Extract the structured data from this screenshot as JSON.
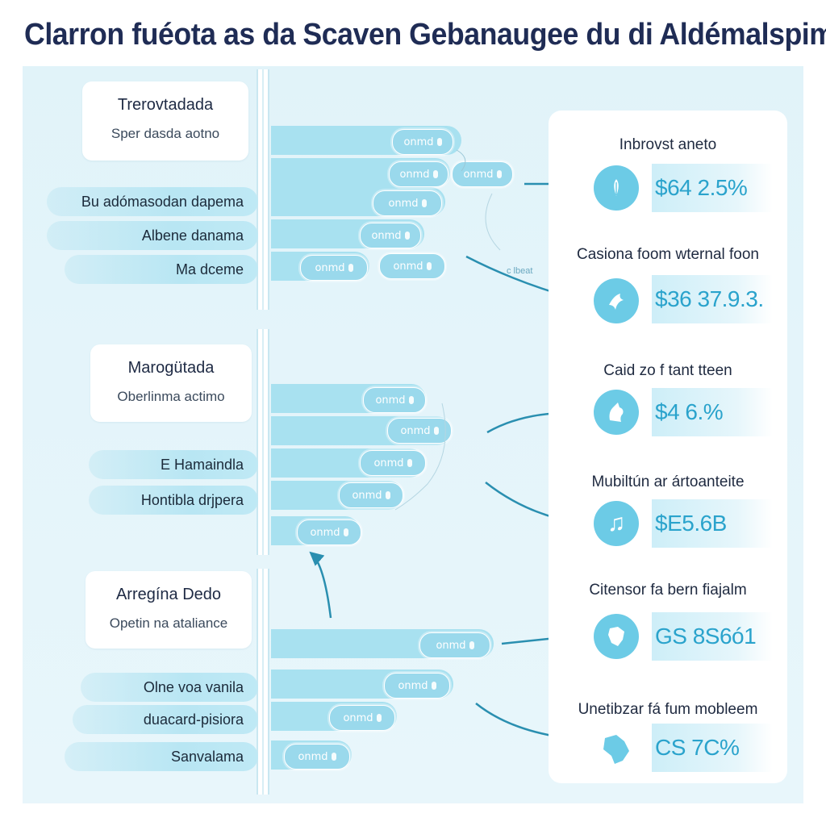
{
  "title": "Clarron fuéota as da Scaven Gebanaugee du di Aldémalspim",
  "groups": [
    {
      "card_title": "Trerovtadada",
      "card_sub": "Sper dasda aotno",
      "rows": [
        "Bu adómasodan dapema",
        "Albene danama",
        "Ma dceme"
      ],
      "pills": [
        "onmd",
        "onmd",
        "onmd",
        "onmd",
        "onmd",
        "onmd",
        "onmd"
      ]
    },
    {
      "card_title": "Marogütada",
      "card_sub": "Oberlinma actimo",
      "rows": [
        "E Hamaindla",
        "Hontibla drjpera"
      ],
      "pills": [
        "onmd",
        "onmd",
        "onmd",
        "onmd",
        "onmd"
      ]
    },
    {
      "card_title": "Arregína Dedo",
      "card_sub": "Opetin na ataliance",
      "rows": [
        "Olne voa vanila",
        "duacard-pisiora",
        "Sanvalama"
      ],
      "pills": [
        "onmd",
        "onmd",
        "onmd",
        "onmd"
      ]
    }
  ],
  "small_note_1": "c  lbeat",
  "metrics": [
    {
      "title": "Inbrovst aneto",
      "value": "$64 2.5%",
      "icon": "leaf-icon"
    },
    {
      "title": "Casiona foom wternal foon",
      "value": "$36 37.9.3.",
      "icon": "bird-icon"
    },
    {
      "title": "Caid zo f tant tteen",
      "value": "$4 6.%",
      "icon": "dog-icon"
    },
    {
      "title": "Mubiltún ar ártoanteite",
      "value": "$E5.6B",
      "icon": "music-icon"
    },
    {
      "title": "Citensor fa bern fiajalm",
      "value": "GS 8S6ó1",
      "icon": "map-region-icon"
    },
    {
      "title": "Unetibzar fá fum mobleem",
      "value": "CS 7C%",
      "icon": "map-region-icon"
    }
  ],
  "colors": {
    "accent": "#6ccbe6",
    "bar": "#a8e1f0",
    "panel": "#e1f3f9",
    "title": "#1f2c55",
    "arrow": "#2a8fb0"
  }
}
